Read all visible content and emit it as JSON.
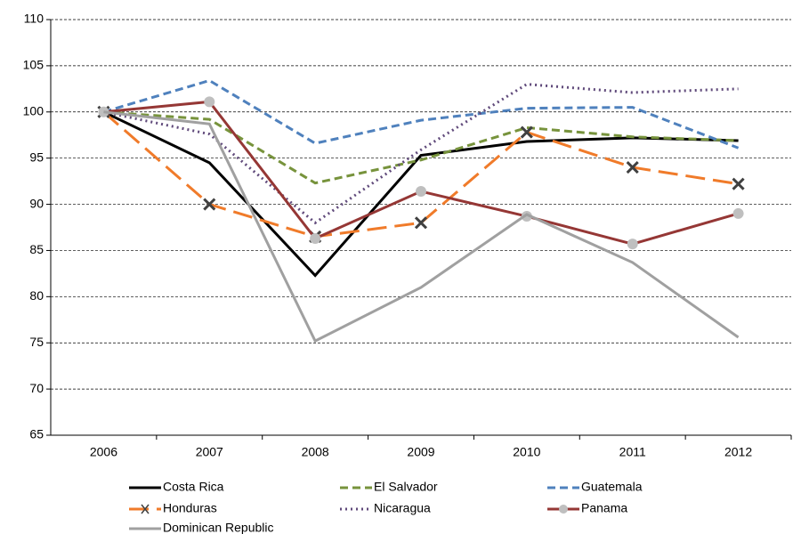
{
  "chart_data": {
    "type": "line",
    "categories": [
      "2006",
      "2007",
      "2008",
      "2009",
      "2010",
      "2011",
      "2012"
    ],
    "series": [
      {
        "name": "Costa Rica",
        "color": "#000000",
        "dash": "solid",
        "values": [
          100,
          94.5,
          82.3,
          95.3,
          96.8,
          97.2,
          96.9
        ]
      },
      {
        "name": "El Salvador",
        "color": "#77933c",
        "dash": "dash",
        "values": [
          100,
          99.2,
          92.3,
          94.8,
          98.3,
          97.3,
          96.9
        ]
      },
      {
        "name": "Guatemala",
        "color": "#4f81bd",
        "dash": "dash",
        "values": [
          100,
          103.4,
          96.6,
          99.1,
          100.4,
          100.5,
          96.1
        ]
      },
      {
        "name": "Honduras",
        "color": "#f07b2a",
        "dash": "longdash",
        "marker": "x",
        "marker_color": "#404040",
        "values": [
          100,
          90,
          86.5,
          88,
          97.8,
          94,
          92.2
        ]
      },
      {
        "name": "Nicaragua",
        "color": "#604a7b",
        "dash": "dot",
        "values": [
          100,
          97.6,
          88,
          95.9,
          103,
          102.1,
          102.5
        ]
      },
      {
        "name": "Panama",
        "color": "#953735",
        "dash": "solid",
        "marker": "circle",
        "marker_color": "#bfbfbf",
        "values": [
          100,
          101.1,
          86.3,
          91.4,
          88.7,
          85.7,
          89
        ]
      },
      {
        "name": "Dominican Republic",
        "color": "#a0a0a0",
        "dash": "solid",
        "values": [
          100,
          98.7,
          75.2,
          81,
          88.9,
          83.7,
          75.6
        ]
      }
    ],
    "ylim": [
      65,
      110
    ],
    "yticks": [
      65,
      70,
      75,
      80,
      85,
      90,
      95,
      100,
      105,
      110
    ],
    "grid": true
  }
}
